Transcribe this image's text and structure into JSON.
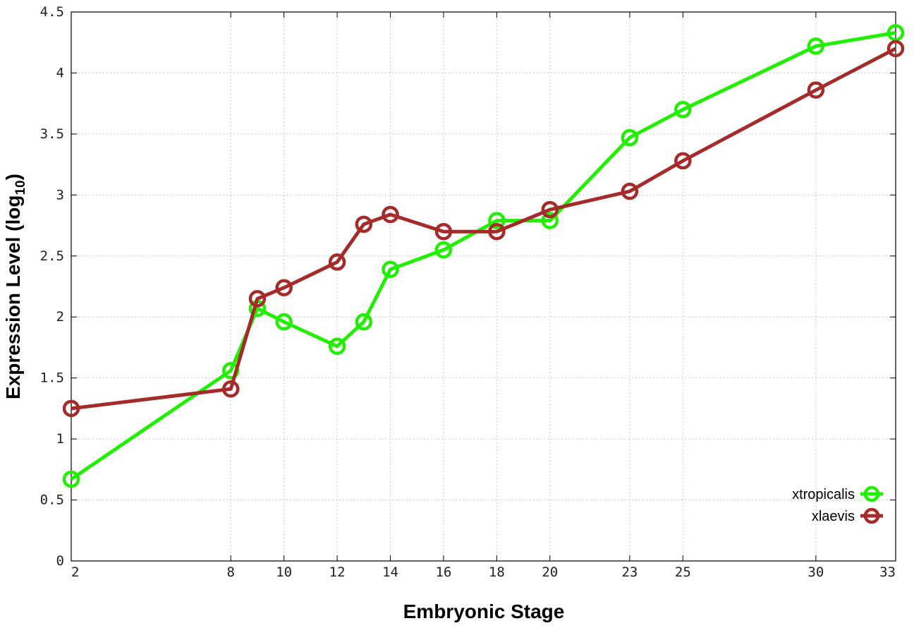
{
  "chart_data": {
    "type": "line",
    "xlabel": "Embryonic Stage",
    "ylabel": "Expression Level (log",
    "ylabel_sub": "10",
    "ylabel_close": ")",
    "x_ticks": [
      2,
      8,
      10,
      12,
      14,
      16,
      18,
      20,
      23,
      25,
      30,
      33
    ],
    "y_ticks": [
      "0",
      "0.5",
      "1",
      "1.5",
      "2",
      "2.5",
      "3",
      "3.5",
      "4",
      "4.5"
    ],
    "xlim": [
      2,
      33
    ],
    "ylim": [
      0,
      4.5
    ],
    "grid": true,
    "legend_position": "bottom-right",
    "series": [
      {
        "name": "xtropicalis",
        "color": "#22ee00",
        "x": [
          2,
          8,
          9,
          10,
          12,
          13,
          14,
          16,
          18,
          20,
          23,
          25,
          30,
          33
        ],
        "y": [
          0.67,
          1.56,
          2.07,
          1.96,
          1.76,
          1.96,
          2.39,
          2.55,
          2.79,
          2.79,
          3.47,
          3.7,
          4.22,
          4.33
        ]
      },
      {
        "name": "xlaevis",
        "color": "#a52a2a",
        "x": [
          2,
          8,
          9,
          10,
          12,
          13,
          14,
          16,
          18,
          20,
          23,
          25,
          30,
          33
        ],
        "y": [
          1.25,
          1.41,
          2.15,
          2.24,
          2.45,
          2.76,
          2.84,
          2.7,
          2.7,
          2.88,
          3.03,
          3.28,
          3.86,
          4.2
        ]
      }
    ]
  }
}
